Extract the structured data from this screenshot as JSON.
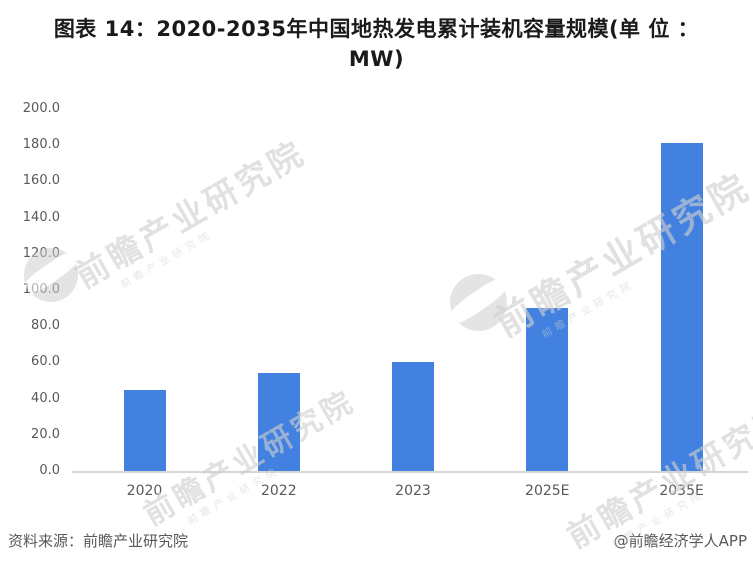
{
  "title": {
    "line1": "图表 14：2020-2035年中国地热发电累计装机容量规模(单 位 ：",
    "line2": "MW)"
  },
  "footer": {
    "source": "资料来源：前瞻产业研究院",
    "credit": "@前瞻经济学人APP"
  },
  "watermark": {
    "text": "前瞻产业研究院",
    "logo": "qianzhan-swoosh-logo"
  },
  "colors": {
    "bar": "#4281DF",
    "axis_text": "#595959",
    "baseline": "#D6D6D6",
    "title": "#1A1A1A",
    "footer": "#595959",
    "watermark": "#CFCFCF"
  },
  "chart_data": {
    "type": "bar",
    "categories": [
      "2020",
      "2022",
      "2023",
      "2025E",
      "2035E"
    ],
    "values": [
      45,
      54,
      60,
      90,
      181
    ],
    "title": "图表 14：2020-2035年中国地热发电累计装机容量规模(单 位 ：MW)",
    "xlabel": "",
    "ylabel": "",
    "unit": "MW",
    "ylim": [
      0,
      200
    ],
    "ytick_step": 20,
    "ytick_labels": [
      "0.0",
      "20.0",
      "40.0",
      "60.0",
      "80.0",
      "100.0",
      "120.0",
      "140.0",
      "160.0",
      "180.0",
      "200.0"
    ],
    "grid": false,
    "legend": "none",
    "bar_color": "#4281DF"
  }
}
